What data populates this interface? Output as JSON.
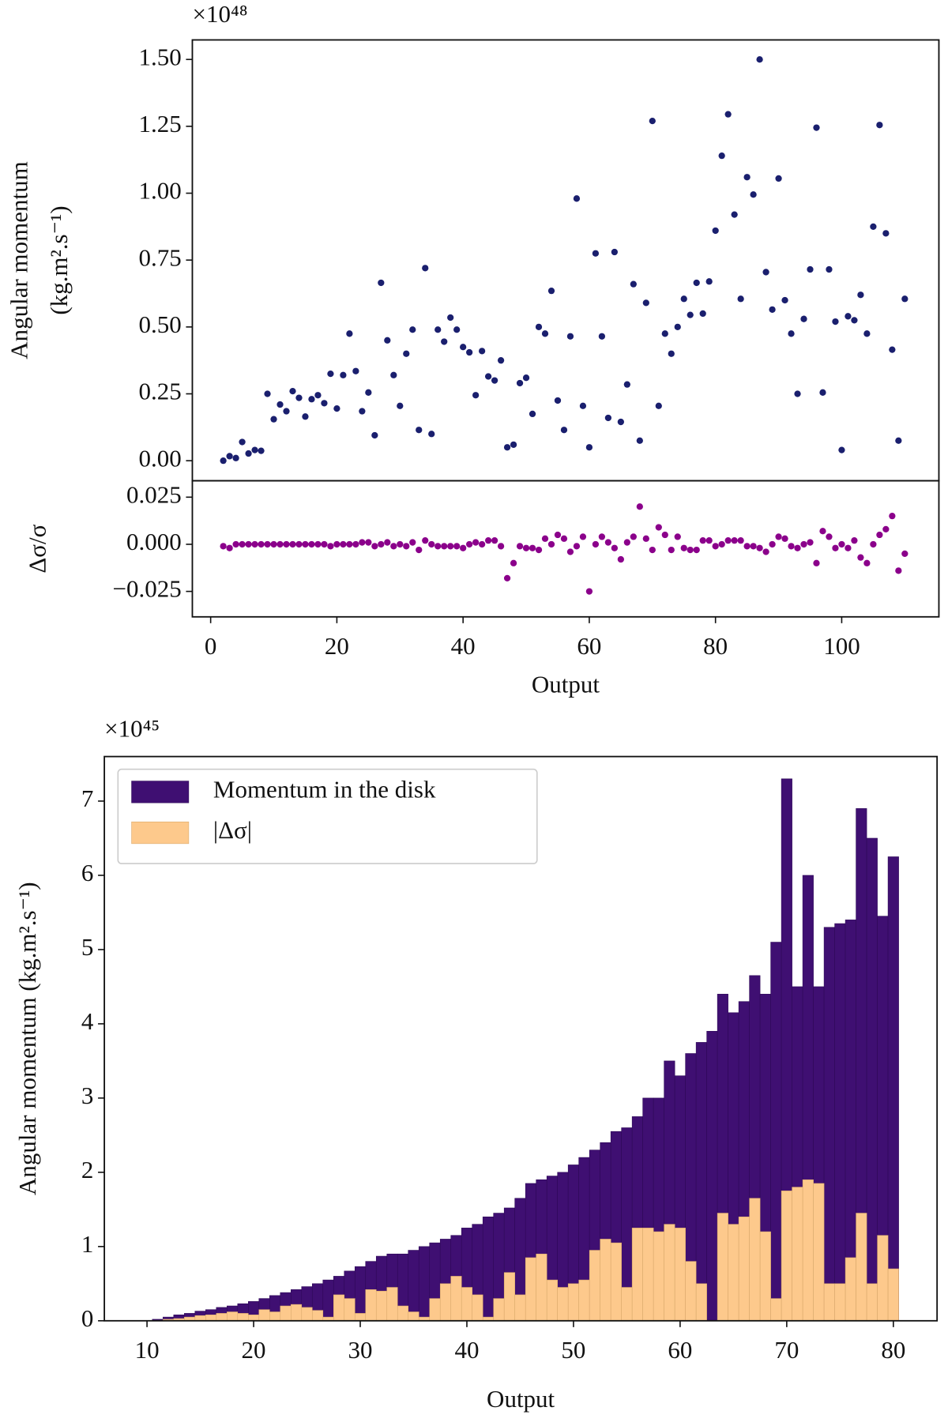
{
  "chart_data": [
    {
      "type": "scatter",
      "offset_label": "×10⁴⁸",
      "ylabel": [
        "Angular momentum",
        "(kg.m².s⁻¹)"
      ],
      "color": "#1a1f6e",
      "x": [
        2,
        3,
        4,
        5,
        6,
        7,
        8,
        9,
        10,
        11,
        12,
        13,
        14,
        15,
        16,
        17,
        18,
        19,
        20,
        21,
        22,
        23,
        24,
        25,
        26,
        27,
        28,
        29,
        30,
        31,
        32,
        33,
        34,
        35,
        36,
        37,
        38,
        39,
        40,
        41,
        42,
        43,
        44,
        45,
        46,
        47,
        48,
        49,
        50,
        51,
        52,
        53,
        54,
        55,
        56,
        57,
        58,
        59,
        60,
        61,
        62,
        63,
        64,
        65,
        66,
        67,
        68,
        69,
        70,
        71,
        72,
        73,
        74,
        75,
        76,
        77,
        78,
        79,
        80,
        81,
        82,
        83,
        84,
        85,
        86,
        87,
        88,
        89,
        90,
        91,
        92,
        93,
        94,
        95,
        96,
        97,
        98,
        99,
        100,
        101,
        102,
        103,
        104,
        105,
        106,
        107,
        108,
        109,
        110
      ],
      "values": [
        0.0,
        0.017,
        0.01,
        0.07,
        0.027,
        0.04,
        0.037,
        0.25,
        0.155,
        0.21,
        0.185,
        0.26,
        0.235,
        0.165,
        0.23,
        0.245,
        0.215,
        0.325,
        0.195,
        0.32,
        0.475,
        0.335,
        0.185,
        0.255,
        0.095,
        0.665,
        0.45,
        0.32,
        0.205,
        0.4,
        0.49,
        0.115,
        0.72,
        0.1,
        0.49,
        0.445,
        0.535,
        0.49,
        0.425,
        0.405,
        0.245,
        0.41,
        0.315,
        0.3,
        0.375,
        0.05,
        0.06,
        0.29,
        0.31,
        0.175,
        0.5,
        0.475,
        0.635,
        0.225,
        0.115,
        0.465,
        0.98,
        0.205,
        0.05,
        0.775,
        0.465,
        0.16,
        0.78,
        0.145,
        0.285,
        0.66,
        0.075,
        0.59,
        1.27,
        0.205,
        0.475,
        0.4,
        0.5,
        0.605,
        0.545,
        0.665,
        0.55,
        0.67,
        0.86,
        1.14,
        1.295,
        0.92,
        0.605,
        1.06,
        0.995,
        1.5,
        0.705,
        0.565,
        1.055,
        0.6,
        0.475,
        0.25,
        0.53,
        0.715,
        1.245,
        0.255,
        0.715,
        0.52,
        0.04,
        0.54,
        0.525,
        0.62,
        0.475,
        0.875,
        1.255,
        0.85,
        0.415,
        0.075,
        0.605
      ],
      "xlim": [
        -2.9,
        115.4
      ],
      "ylim": [
        -0.075,
        1.573
      ],
      "yticks": [
        {
          "value": 0,
          "label": "0.00"
        },
        {
          "value": 0.25,
          "label": "0.25"
        },
        {
          "value": 0.5,
          "label": "0.50"
        },
        {
          "value": 0.75,
          "label": "0.75"
        },
        {
          "value": 1,
          "label": "1.00"
        },
        {
          "value": 1.25,
          "label": "1.25"
        },
        {
          "value": 1.5,
          "label": "1.50"
        }
      ]
    },
    {
      "type": "scatter",
      "ylabel": [
        "Δσ/σ"
      ],
      "xlabel": "Output",
      "color": "#8b008b",
      "x": [
        2,
        3,
        4,
        5,
        6,
        7,
        8,
        9,
        10,
        11,
        12,
        13,
        14,
        15,
        16,
        17,
        18,
        19,
        20,
        21,
        22,
        23,
        24,
        25,
        26,
        27,
        28,
        29,
        30,
        31,
        32,
        33,
        34,
        35,
        36,
        37,
        38,
        39,
        40,
        41,
        42,
        43,
        44,
        45,
        46,
        47,
        48,
        49,
        50,
        51,
        52,
        53,
        54,
        55,
        56,
        57,
        58,
        59,
        60,
        61,
        62,
        63,
        64,
        65,
        66,
        67,
        68,
        69,
        70,
        71,
        72,
        73,
        74,
        75,
        76,
        77,
        78,
        79,
        80,
        81,
        82,
        83,
        84,
        85,
        86,
        87,
        88,
        89,
        90,
        91,
        92,
        93,
        94,
        95,
        96,
        97,
        98,
        99,
        100,
        101,
        102,
        103,
        104,
        105,
        106,
        107,
        108,
        109,
        110
      ],
      "values": [
        -0.001,
        -0.002,
        0,
        0,
        0,
        0,
        0,
        0,
        0,
        0,
        0,
        0,
        0,
        0,
        0,
        0,
        0,
        -0.001,
        0,
        0,
        0,
        0,
        0.001,
        0.001,
        -0.001,
        0,
        0.001,
        -0.001,
        0,
        -0.001,
        0.001,
        -0.003,
        0.002,
        0,
        -0.001,
        -0.001,
        -0.001,
        -0.001,
        -0.002,
        0,
        0.001,
        0,
        0.002,
        0.002,
        -0.001,
        -0.018,
        -0.01,
        -0.001,
        -0.002,
        -0.002,
        -0.003,
        0.003,
        0,
        0.005,
        0.003,
        -0.004,
        -0.001,
        0.004,
        -0.025,
        0,
        0.004,
        0.001,
        -0.002,
        -0.008,
        0.001,
        0.004,
        0.02,
        0.003,
        -0.003,
        0.009,
        0.005,
        -0.003,
        0.004,
        -0.002,
        -0.003,
        -0.003,
        0.002,
        0.002,
        -0.001,
        0,
        0.002,
        0.002,
        0.002,
        -0.001,
        -0.001,
        -0.002,
        -0.004,
        0,
        0.004,
        0.003,
        -0.001,
        -0.002,
        0,
        0.001,
        -0.01,
        0.007,
        0.004,
        -0.002,
        0,
        -0.002,
        0.002,
        -0.007,
        -0.01,
        0,
        0.005,
        0.008,
        0.015,
        -0.014,
        -0.005
      ],
      "xlim": [
        -2.9,
        115.4
      ],
      "ylim": [
        -0.0385,
        0.0337
      ],
      "xticks": [
        0,
        20,
        40,
        60,
        80,
        100
      ],
      "yticks": [
        {
          "value": -0.025,
          "label": "−0.025"
        },
        {
          "value": 0,
          "label": "0.000"
        },
        0.025
      ]
    },
    {
      "type": "bar",
      "offset_label": "×10⁴⁵",
      "ylabel": [
        "Angular momentum (kg.m².s⁻¹)"
      ],
      "xlabel": "Output",
      "legend": "upper left",
      "x": [
        10,
        11,
        12,
        13,
        14,
        15,
        16,
        17,
        18,
        19,
        20,
        21,
        22,
        23,
        24,
        25,
        26,
        27,
        28,
        29,
        30,
        31,
        32,
        33,
        34,
        35,
        36,
        37,
        38,
        39,
        40,
        41,
        42,
        43,
        44,
        45,
        46,
        47,
        48,
        49,
        50,
        51,
        52,
        53,
        54,
        55,
        56,
        57,
        58,
        59,
        60,
        61,
        62,
        63,
        64,
        65,
        66,
        67,
        68,
        69,
        70,
        71,
        72,
        73,
        74,
        75,
        76,
        77,
        78,
        79,
        80
      ],
      "series": [
        {
          "name": "Momentum in the disk",
          "color": "#3f0f72",
          "values": [
            0,
            0.02,
            0.05,
            0.08,
            0.1,
            0.13,
            0.15,
            0.18,
            0.2,
            0.23,
            0.26,
            0.3,
            0.34,
            0.38,
            0.42,
            0.46,
            0.5,
            0.55,
            0.6,
            0.67,
            0.73,
            0.8,
            0.87,
            0.9,
            0.9,
            0.95,
            1.0,
            1.05,
            1.1,
            1.15,
            1.25,
            1.3,
            1.4,
            1.45,
            1.52,
            1.65,
            1.85,
            1.9,
            1.95,
            2.0,
            2.1,
            2.2,
            2.3,
            2.4,
            2.55,
            2.6,
            2.75,
            3.0,
            3.0,
            3.5,
            3.3,
            3.6,
            3.75,
            3.9,
            4.4,
            4.15,
            4.3,
            4.65,
            4.4,
            5.1,
            7.3,
            4.5,
            6.0,
            4.5,
            5.3,
            5.35,
            5.4,
            6.9,
            6.5,
            5.45,
            6.25
          ]
        },
        {
          "name": "|Δσ|",
          "color": "#fdc98c",
          "values": [
            0,
            0,
            0.02,
            0.03,
            0.05,
            0.07,
            0.08,
            0.1,
            0.12,
            0.1,
            0.08,
            0.15,
            0.12,
            0.2,
            0.22,
            0.18,
            0.14,
            0.05,
            0.35,
            0.3,
            0.1,
            0.42,
            0.4,
            0.45,
            0.2,
            0.12,
            0.05,
            0.3,
            0.5,
            0.6,
            0.45,
            0.35,
            0.05,
            0.3,
            0.65,
            0.35,
            0.85,
            0.9,
            0.55,
            0.45,
            0.5,
            0.55,
            0.95,
            1.1,
            1.05,
            0.45,
            1.25,
            1.25,
            1.2,
            1.3,
            1.25,
            0.8,
            0.5,
            0,
            1.45,
            1.3,
            1.4,
            1.65,
            1.2,
            0.3,
            1.75,
            1.8,
            1.9,
            1.85,
            0.5,
            0.5,
            0.85,
            1.45,
            0.5,
            1.15,
            0.7
          ]
        }
      ],
      "xlim": [
        6.0,
        84.1
      ],
      "ylim": [
        0,
        7.6
      ],
      "xticks": [
        10,
        20,
        30,
        40,
        50,
        60,
        70,
        80
      ],
      "yticks": [
        0,
        1,
        2,
        3,
        4,
        5,
        6,
        7
      ]
    }
  ]
}
